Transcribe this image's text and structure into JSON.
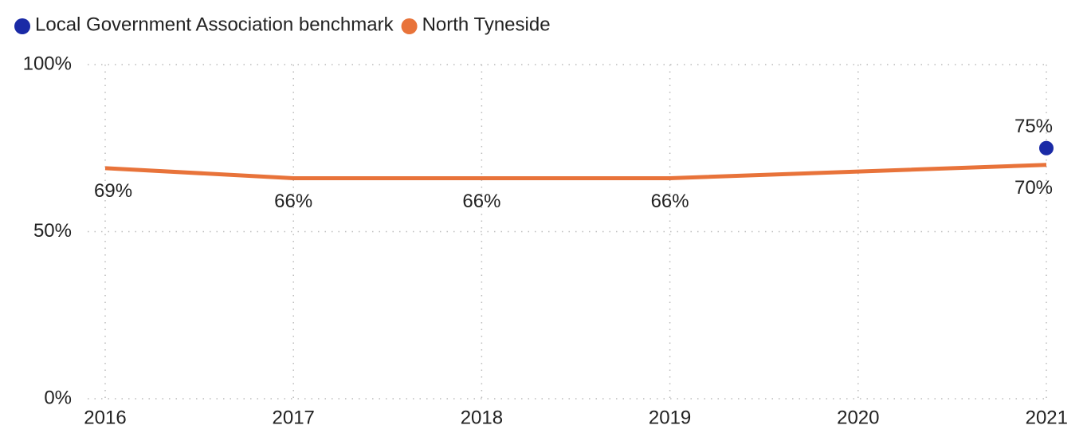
{
  "chart_data": {
    "type": "line",
    "x": [
      2016,
      2017,
      2018,
      2019,
      2020,
      2021
    ],
    "xlim": [
      2016,
      2021
    ],
    "xticks": [
      2016,
      2017,
      2018,
      2019,
      2020,
      2021
    ],
    "ylim": [
      0,
      100
    ],
    "yticks": [
      {
        "value": 0,
        "label": "0%"
      },
      {
        "value": 50,
        "label": "50%"
      },
      {
        "value": 100,
        "label": "100%"
      }
    ],
    "grid": true,
    "legend": "top-left",
    "series": [
      {
        "name": "Local Government Association benchmark",
        "color": "#1a2aa6",
        "mode": "markers",
        "label_position": "above",
        "values": [
          null,
          null,
          null,
          null,
          null,
          75
        ],
        "value_labels": [
          null,
          null,
          null,
          null,
          null,
          "75%"
        ]
      },
      {
        "name": "North Tyneside",
        "color": "#e8733a",
        "mode": "lines",
        "label_position": "below",
        "values": [
          69,
          66,
          66,
          66,
          68,
          70
        ],
        "value_labels": [
          "69%",
          "66%",
          "66%",
          "66%",
          null,
          "70%"
        ]
      }
    ]
  }
}
